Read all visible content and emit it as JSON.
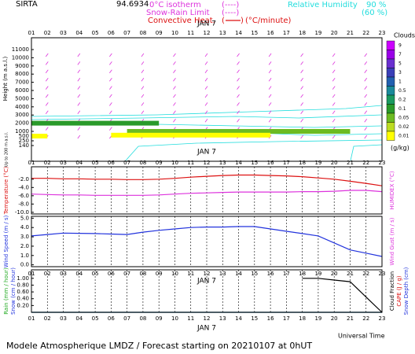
{
  "header": {
    "site": "SIRTA",
    "coordinate": "94.6934",
    "isotherm_label": "0°C isotherm",
    "isotherm_key": "(----)",
    "snow_rain_label": "Snow-Rain Limit",
    "snow_rain_key": "(----)",
    "convective_label": "Convective Heat.",
    "convective_unit": "(°C/minute)",
    "rh_label": "Relative Humidity",
    "rh_high": "90 %",
    "rh_low": "(60 %)"
  },
  "chart_data": [
    {
      "type": "cloud-height",
      "date": "JAN 7",
      "x": [
        "01",
        "02",
        "03",
        "04",
        "05",
        "06",
        "07",
        "08",
        "09",
        "10",
        "11",
        "12",
        "13",
        "14",
        "15",
        "16",
        "17",
        "18",
        "19",
        "20",
        "21",
        "22",
        "23"
      ],
      "y_label": "Height (m a.s.l.)",
      "sub_label": "Up to 200 m a.s.l.",
      "ylim": [
        0,
        11500
      ],
      "yticks": [
        11000,
        10000,
        9000,
        8000,
        7000,
        6000,
        5000,
        4000,
        3000,
        2000,
        1000,
        500,
        250,
        140
      ],
      "colorbar": {
        "title": "Clouds",
        "unit": "(g/kg)",
        "levels": [
          9,
          7,
          5,
          3,
          1,
          0.5,
          0.2,
          0.1,
          0.05,
          0.02,
          0.01
        ],
        "colors": [
          "#cc00ff",
          "#9a00e8",
          "#6a2fd0",
          "#3a3fb8",
          "#2260b0",
          "#1a8a9a",
          "#1a9a60",
          "#2a9a2a",
          "#6cbb22",
          "#bcdc22",
          "#ffff00"
        ]
      },
      "cloud_layers": [
        {
          "from": "01",
          "to": "09",
          "height": 2000,
          "value": 0.1
        },
        {
          "from": "07",
          "to": "21",
          "height": 1000,
          "value": 0.05
        },
        {
          "from": "01",
          "to": "02",
          "height": 500,
          "value": 0.01
        },
        {
          "from": "06",
          "to": "16",
          "height": 600,
          "value": 0.01
        }
      ]
    },
    {
      "type": "line",
      "date": "JAN 7",
      "x": [
        "01",
        "02",
        "03",
        "04",
        "05",
        "06",
        "07",
        "08",
        "09",
        "10",
        "11",
        "12",
        "13",
        "14",
        "15",
        "16",
        "17",
        "18",
        "19",
        "20",
        "21",
        "22",
        "23"
      ],
      "ylim": [
        -10.4,
        1
      ],
      "yticks": [
        {
          "value": -2,
          "label": "-2.0"
        },
        {
          "value": -4,
          "label": "-4.0"
        },
        {
          "value": -6,
          "label": "-6.0"
        },
        {
          "value": -8,
          "label": "-8.0"
        },
        {
          "value": -10,
          "label": "-10.0"
        }
      ],
      "series": [
        {
          "name": "Temperature (°C)",
          "color": "#dd1111",
          "values": [
            -1.8,
            -1.8,
            -1.9,
            -1.9,
            -2.0,
            -2.0,
            -2.1,
            -2.1,
            -2.0,
            -1.8,
            -1.5,
            -1.3,
            -1.1,
            -1.0,
            -1.0,
            -1.1,
            -1.2,
            -1.4,
            -1.7,
            -2.0,
            -2.5,
            -3.0,
            -3.6
          ]
        },
        {
          "name": "HUMIDEX (°C)",
          "color": "#dd33dd",
          "axis": "y2",
          "values": [
            -5.6,
            -5.7,
            -5.8,
            -5.8,
            -5.9,
            -5.9,
            -5.9,
            -5.9,
            -5.8,
            -5.6,
            -5.4,
            -5.3,
            -5.2,
            -5.1,
            -5.1,
            -5.1,
            -5.1,
            -5.0,
            -5.0,
            -4.9,
            -4.7,
            -4.7,
            -5.0
          ]
        }
      ]
    },
    {
      "type": "line",
      "x": [
        "01",
        "02",
        "03",
        "04",
        "05",
        "06",
        "07",
        "08",
        "09",
        "10",
        "11",
        "12",
        "13",
        "14",
        "15",
        "16",
        "17",
        "18",
        "19",
        "20",
        "21",
        "22",
        "23"
      ],
      "ylim": [
        -0.2,
        5.2
      ],
      "yticks": [
        {
          "value": 0,
          "label": "0.0"
        },
        {
          "value": 1,
          "label": "1.0"
        },
        {
          "value": 2,
          "label": "2.0"
        },
        {
          "value": 3,
          "label": "3.0"
        },
        {
          "value": 4,
          "label": "4.0"
        },
        {
          "value": 5,
          "label": "5.0"
        }
      ],
      "y2_label": "Wind Gust (m / s)",
      "series": [
        {
          "name": "Wind Speed (m / s)",
          "color": "#2233dd",
          "values": [
            3.1,
            3.25,
            3.4,
            3.38,
            3.35,
            3.3,
            3.25,
            3.5,
            3.7,
            3.85,
            4.0,
            4.05,
            4.05,
            4.1,
            4.1,
            3.85,
            3.6,
            3.35,
            3.1,
            2.35,
            1.6,
            1.25,
            0.9
          ]
        }
      ]
    },
    {
      "type": "line",
      "date": "JAN 7",
      "x": [
        "01",
        "02",
        "03",
        "04",
        "05",
        "06",
        "07",
        "08",
        "09",
        "10",
        "11",
        "12",
        "13",
        "14",
        "15",
        "16",
        "17",
        "18",
        "19",
        "20",
        "21",
        "22",
        "23"
      ],
      "ylim": [
        0,
        1.25
      ],
      "yticks": [
        {
          "value": 0.2,
          "label": "0.20"
        },
        {
          "value": 0.4,
          "label": "0.40"
        },
        {
          "value": 0.6,
          "label": "0.60"
        },
        {
          "value": 0.8,
          "label": "0.80"
        },
        {
          "value": 1,
          "label": "1.00"
        }
      ],
      "y2lim": [
        0,
        1.25
      ],
      "y2_labels": [
        "CAPE (J / g)",
        "Snow Depth (cm)"
      ],
      "series": [
        {
          "name": "Rain (mm / hour)",
          "color": "#22aa22",
          "values": [
            0,
            0,
            0,
            0,
            0,
            0,
            0,
            0,
            0,
            0,
            0,
            0,
            0,
            0,
            0,
            0,
            0,
            0,
            0,
            0,
            0,
            0,
            0
          ]
        },
        {
          "name": "Snow (cm / hour)",
          "color": "#2233dd",
          "values": [
            0,
            0,
            0,
            0,
            0,
            0,
            0,
            0,
            0,
            0,
            0,
            0,
            0,
            0,
            0,
            0,
            0,
            0,
            0,
            0,
            0,
            0,
            0
          ]
        },
        {
          "name": "Cloud Fraction",
          "color": "#000000",
          "axis": "y2",
          "values": [
            null,
            null,
            null,
            null,
            null,
            null,
            null,
            null,
            null,
            null,
            null,
            null,
            null,
            null,
            null,
            null,
            null,
            1.0,
            1.0,
            0.95,
            0.9,
            0.45,
            0.0
          ]
        }
      ]
    }
  ],
  "footer": {
    "time_axis": "Universal Time",
    "date": "JAN 7",
    "credit": "Modele Atmospherique LMDZ / Forecast starting on 20210107 at 0hUT"
  }
}
